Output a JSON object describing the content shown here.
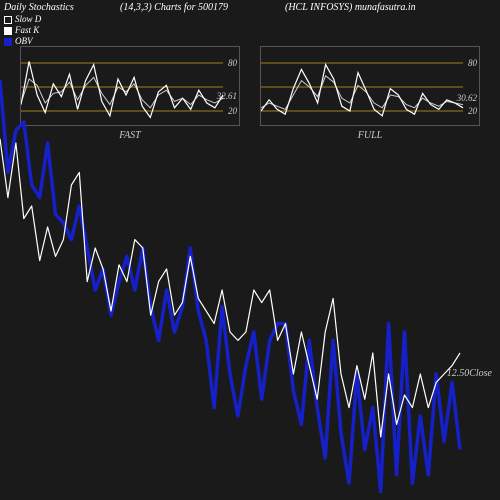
{
  "header": {
    "title_left": "Daily Stochastics",
    "title_mid": "(14,3,3) Charts for 500179",
    "title_right": "(HCL INFOSYS) munafasutra.in"
  },
  "legend": {
    "slow_d": {
      "label": "Slow D",
      "color": "#ffffff",
      "box_border": "#ffffff",
      "box_fill": "transparent"
    },
    "fast_k": {
      "label": "Fast K",
      "color": "#ffffff",
      "box_border": "#ffffff",
      "box_fill": "#ffffff"
    },
    "obv": {
      "label": "OBV",
      "color": "#ffffff",
      "box_border": "#1520c8",
      "box_fill": "#1520c8"
    }
  },
  "mini_chart_common": {
    "border_color": "#555555",
    "grid_levels": [
      20,
      50,
      80
    ],
    "grid_color": "#d4a017",
    "line1_color": "#ffffff",
    "line2_color": "#cccccc"
  },
  "fast_panel": {
    "label": "FAST",
    "value_tag": "32.61",
    "tick_labels": [
      "80",
      "20"
    ],
    "series1": [
      28,
      82,
      40,
      18,
      54,
      38,
      66,
      22,
      58,
      78,
      32,
      14,
      60,
      40,
      62,
      26,
      12,
      44,
      52,
      24,
      36,
      22,
      46,
      30,
      24,
      40
    ],
    "series2": [
      30,
      60,
      52,
      30,
      42,
      44,
      56,
      34,
      52,
      62,
      42,
      28,
      50,
      44,
      54,
      34,
      24,
      40,
      46,
      32,
      36,
      28,
      40,
      34,
      30,
      36
    ]
  },
  "full_panel": {
    "label": "FULL",
    "value_tag": "30.62",
    "tick_labels": [
      "80",
      "20"
    ],
    "series1": [
      20,
      34,
      22,
      16,
      48,
      72,
      54,
      30,
      78,
      60,
      26,
      20,
      68,
      46,
      22,
      14,
      48,
      40,
      22,
      16,
      42,
      28,
      22,
      34,
      30,
      24
    ],
    "series2": [
      24,
      30,
      26,
      22,
      40,
      58,
      50,
      38,
      64,
      56,
      36,
      30,
      52,
      44,
      30,
      24,
      40,
      38,
      28,
      24,
      36,
      30,
      26,
      32,
      30,
      28
    ]
  },
  "main": {
    "bg": "#1a1a1a",
    "close_value": "12.50",
    "close_suffix": "Close",
    "obv_color": "#1520c8",
    "price_color": "#ffffff",
    "price_series": [
      86,
      72,
      85,
      67,
      70,
      57,
      65,
      58,
      62,
      75,
      78,
      52,
      60,
      55,
      45,
      56,
      52,
      62,
      60,
      44,
      52,
      55,
      44,
      47,
      58,
      48,
      45,
      42,
      50,
      40,
      38,
      40,
      50,
      47,
      50,
      38,
      42,
      30,
      40,
      32,
      24,
      40,
      48,
      30,
      22,
      32,
      24,
      35,
      15,
      30,
      18,
      25,
      22,
      30,
      22,
      28,
      30,
      32,
      35
    ],
    "obv_series": [
      100,
      78,
      88,
      90,
      75,
      72,
      85,
      68,
      66,
      62,
      70,
      60,
      50,
      55,
      44,
      52,
      58,
      50,
      60,
      46,
      38,
      50,
      40,
      46,
      60,
      45,
      38,
      22,
      46,
      30,
      20,
      32,
      40,
      24,
      38,
      42,
      42,
      26,
      18,
      38,
      22,
      10,
      38,
      16,
      4,
      30,
      12,
      22,
      2,
      42,
      6,
      40,
      4,
      20,
      6,
      30,
      14,
      28,
      12
    ]
  },
  "colors": {
    "bg": "#1a1a1a",
    "text": "#ffffff",
    "muted": "#cccccc",
    "grid": "#d4a017",
    "obv": "#1520c8"
  }
}
